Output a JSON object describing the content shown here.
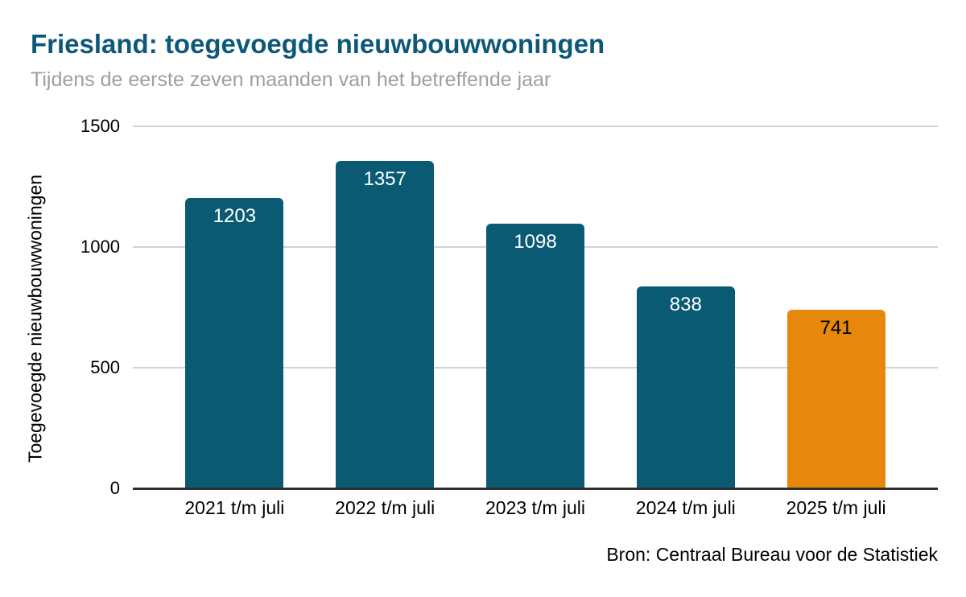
{
  "header": {
    "title": "Friesland: toegevoegde nieuwbouwwoningen",
    "subtitle": "Tijdens de eerste zeven maanden van het betreffende jaar",
    "title_color": "#0d5878",
    "subtitle_color": "#9e9e9e"
  },
  "chart_data": {
    "type": "bar",
    "title": "Friesland: toegevoegde nieuwbouwwoningen",
    "subtitle": "Tijdens de eerste zeven maanden van het betreffende jaar",
    "categories": [
      "2021 t/m juli",
      "2022 t/m juli",
      "2023 t/m juli",
      "2024 t/m juli",
      "2025 t/m juli"
    ],
    "values": [
      1203,
      1357,
      1098,
      838,
      741
    ],
    "bar_colors": [
      "#0a5a74",
      "#0a5a74",
      "#0a5a74",
      "#0a5a74",
      "#e6880b"
    ],
    "value_label_colors": [
      "#ffffff",
      "#ffffff",
      "#ffffff",
      "#ffffff",
      "#000000"
    ],
    "highlight_color": "#e6880b",
    "primary_color": "#0a5a74",
    "xlabel": "",
    "ylabel": "Toegevoegde nieuwbouwwoningen",
    "ylim": [
      0,
      1500
    ],
    "yticks": [
      0,
      500,
      1000,
      1500
    ],
    "grid": "horizontal",
    "gridline_color": "#d2d2d2",
    "axis_line_color": "#2e2e2e",
    "legend_position": "none",
    "value_labels_shown": true
  },
  "footer": {
    "source": "Bron: Centraal Bureau voor de Statistiek"
  }
}
